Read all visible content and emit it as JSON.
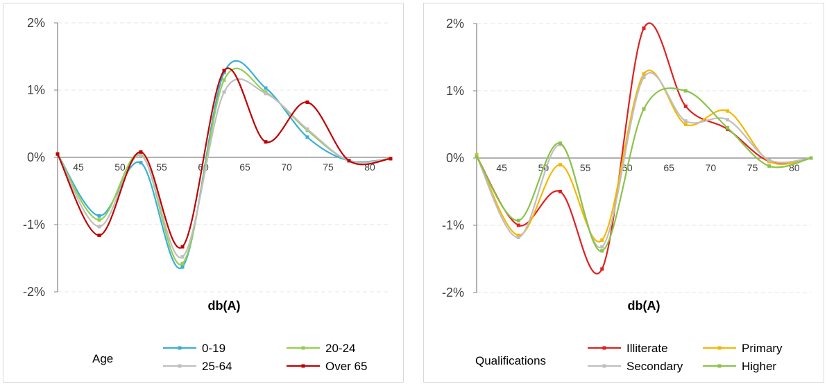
{
  "chart_data": [
    {
      "type": "line",
      "xlabel": "db(A)",
      "ylabel": "",
      "y_ticks": [
        "2%",
        "1%",
        "0%",
        "-1%",
        "-2%"
      ],
      "ylim": [
        -2,
        2
      ],
      "x_ticks": [
        45,
        50,
        55,
        60,
        65,
        70,
        75,
        80
      ],
      "xlim": [
        42.5,
        82.5
      ],
      "grid": "horizontal",
      "legend_title": "Age",
      "legend_placement": "bottom",
      "series": [
        {
          "name": "0-19",
          "color": "#3aaed8",
          "x": [
            42.5,
            47.5,
            52.5,
            57.5,
            62.5,
            67.5,
            72.5,
            77.5,
            82.5
          ],
          "y": [
            0.05,
            -0.87,
            -0.08,
            -1.63,
            1.26,
            1.03,
            0.3,
            -0.05,
            -0.02
          ]
        },
        {
          "name": "20-24",
          "color": "#92d050",
          "x": [
            42.5,
            47.5,
            52.5,
            57.5,
            62.5,
            67.5,
            72.5,
            77.5,
            82.5
          ],
          "y": [
            0.05,
            -0.93,
            0.05,
            -1.58,
            1.15,
            0.97,
            0.4,
            -0.05,
            -0.02
          ]
        },
        {
          "name": "25-64",
          "color": "#bfbfbf",
          "x": [
            42.5,
            47.5,
            52.5,
            57.5,
            62.5,
            67.5,
            72.5,
            77.5,
            82.5
          ],
          "y": [
            0.05,
            -1.03,
            0.03,
            -1.48,
            0.97,
            0.95,
            0.42,
            -0.05,
            -0.02
          ]
        },
        {
          "name": "Over 65",
          "color": "#c00000",
          "x": [
            42.5,
            47.5,
            52.5,
            57.5,
            62.5,
            67.5,
            72.5,
            77.5,
            82.5
          ],
          "y": [
            0.05,
            -1.16,
            0.08,
            -1.33,
            1.29,
            0.23,
            0.82,
            -0.05,
            -0.02
          ]
        }
      ]
    },
    {
      "type": "line",
      "xlabel": "db(A)",
      "ylabel": "",
      "y_ticks": [
        "2%",
        "1%",
        "0%",
        "-1%",
        "-2%"
      ],
      "ylim": [
        -2,
        2
      ],
      "x_ticks": [
        45,
        50,
        55,
        60,
        65,
        70,
        75,
        80
      ],
      "xlim": [
        42,
        82
      ],
      "grid": "horizontal",
      "legend_title": "Qualifications",
      "legend_placement": "bottom",
      "series": [
        {
          "name": "Illiterate",
          "color": "#e02020",
          "x": [
            42,
            47,
            52,
            57,
            62,
            67,
            72,
            77,
            82
          ],
          "y": [
            0.03,
            -1.0,
            -0.5,
            -1.65,
            1.93,
            0.77,
            0.43,
            -0.05,
            0.0
          ]
        },
        {
          "name": "Primary",
          "color": "#f5b800",
          "x": [
            42,
            47,
            52,
            57,
            62,
            67,
            72,
            77,
            82
          ],
          "y": [
            0.05,
            -1.15,
            -0.1,
            -1.22,
            1.25,
            0.5,
            0.7,
            -0.05,
            0.0
          ]
        },
        {
          "name": "Secondary",
          "color": "#bfbfbf",
          "x": [
            42,
            47,
            52,
            57,
            62,
            67,
            72,
            77,
            82
          ],
          "y": [
            0.03,
            -1.18,
            0.2,
            -1.32,
            1.2,
            0.55,
            0.57,
            -0.03,
            0.0
          ]
        },
        {
          "name": "Higher",
          "color": "#8bc34a",
          "x": [
            42,
            47,
            52,
            57,
            62,
            67,
            72,
            77,
            82
          ],
          "y": [
            0.02,
            -0.93,
            0.22,
            -1.38,
            0.73,
            1.0,
            0.45,
            -0.12,
            0.0
          ]
        }
      ]
    }
  ]
}
